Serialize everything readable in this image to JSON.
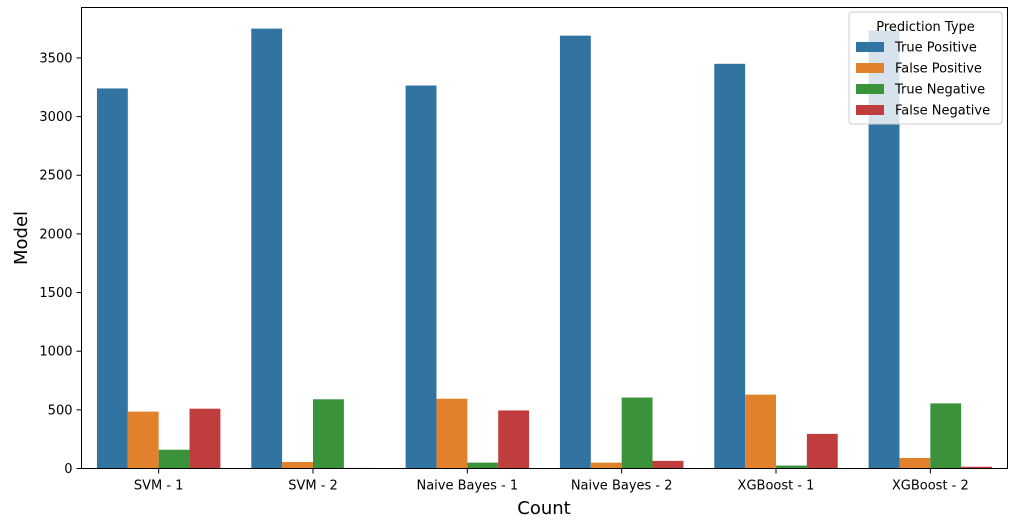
{
  "chart_data": {
    "type": "bar",
    "title": "",
    "xlabel": "Count",
    "ylabel": "Model",
    "categories": [
      "SVM - 1",
      "SVM - 2",
      "Naive Bayes - 1",
      "Naive Bayes - 2",
      "XGBoost - 1",
      "XGBoost - 2"
    ],
    "series": [
      {
        "name": "True Positive",
        "color": "#3274a1",
        "values": [
          3240,
          3750,
          3265,
          3690,
          3450,
          3735
        ]
      },
      {
        "name": "False Positive",
        "color": "#e1812c",
        "values": [
          485,
          55,
          595,
          50,
          630,
          90
        ]
      },
      {
        "name": "True Negative",
        "color": "#3a923a",
        "values": [
          160,
          590,
          50,
          605,
          25,
          555
        ]
      },
      {
        "name": "False Negative",
        "color": "#c03d3e",
        "values": [
          510,
          5,
          495,
          65,
          295,
          15
        ]
      }
    ],
    "ylim": [
      0,
      3930
    ],
    "yticks": [
      0,
      500,
      1000,
      1500,
      2000,
      2500,
      3000,
      3500
    ],
    "grid": false,
    "legend": {
      "title": "Prediction Type",
      "placement": "top-right"
    }
  }
}
